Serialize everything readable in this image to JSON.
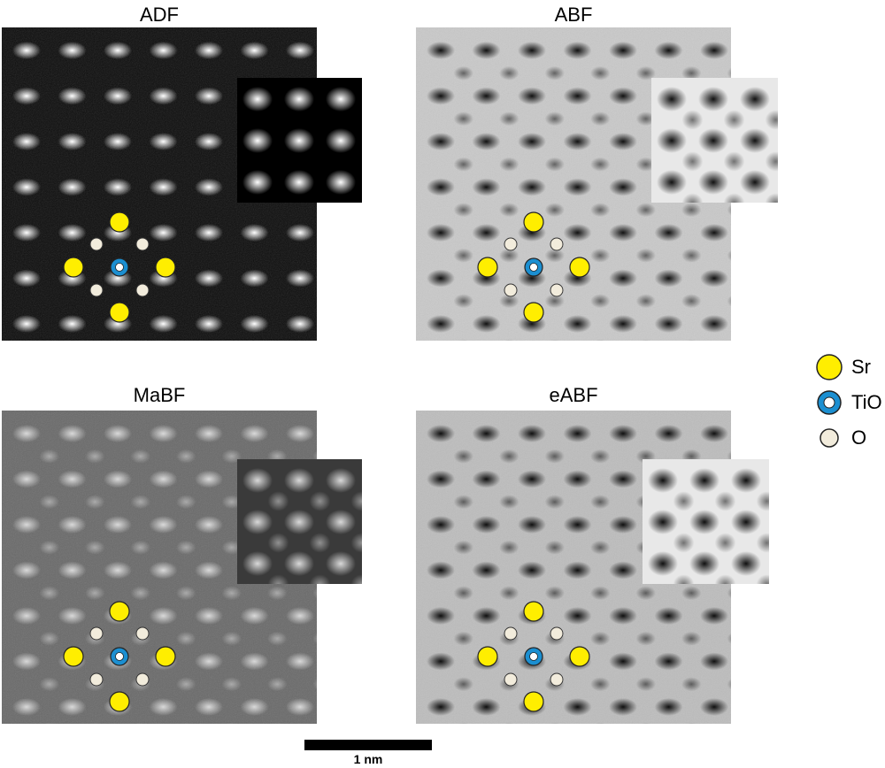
{
  "panels": [
    {
      "title": "ADF",
      "contrast": "bright-atoms",
      "background": "#0d0d0d",
      "spot": "#ffffff"
    },
    {
      "title": "ABF",
      "contrast": "dark-atoms",
      "background": "#c9c9c9",
      "spot": "#111111"
    },
    {
      "title": "MaBF",
      "contrast": "mixed",
      "background": "#6a6a6a",
      "spot": "#d9d9d9"
    },
    {
      "title": "eABF",
      "contrast": "dark-atoms",
      "background": "#bdbdbd",
      "spot": "#0f0f0f"
    }
  ],
  "legend": [
    {
      "label": "Sr",
      "fill": "#ffee00",
      "ring": null,
      "icon": "sr-atom-icon"
    },
    {
      "label": "TiO",
      "fill": "#ffffff",
      "ring": "#1b8fd1",
      "icon": "tio-atom-icon"
    },
    {
      "label": "O",
      "fill": "#f2ecdc",
      "ring": null,
      "icon": "o-atom-icon"
    }
  ],
  "scale_bar": {
    "label": "1 nm"
  }
}
